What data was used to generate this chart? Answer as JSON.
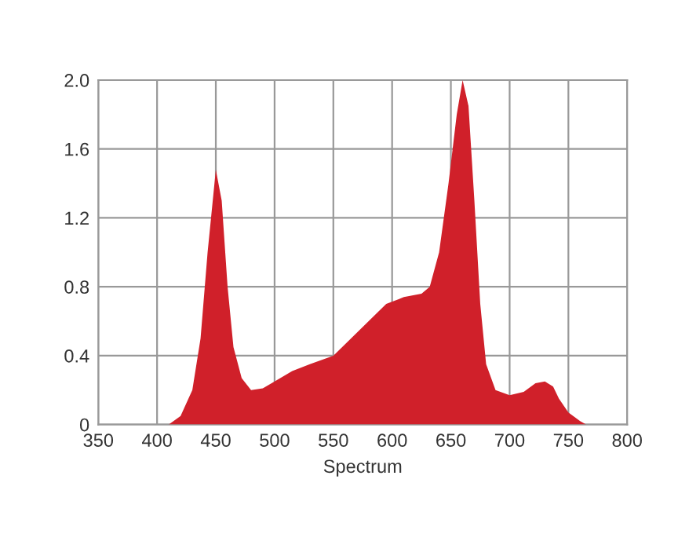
{
  "chart_data": {
    "type": "area",
    "xlabel": "Spectrum",
    "x": [
      410,
      420,
      430,
      437,
      443,
      450,
      455,
      460,
      465,
      472,
      480,
      490,
      500,
      515,
      530,
      550,
      565,
      580,
      595,
      610,
      625,
      632,
      640,
      648,
      655,
      660,
      665,
      670,
      675,
      680,
      688,
      700,
      712,
      722,
      730,
      737,
      742,
      750,
      760,
      765
    ],
    "series": [
      {
        "color": "#d0202a",
        "values": [
          0,
          0.05,
          0.2,
          0.5,
          1.0,
          1.48,
          1.3,
          0.8,
          0.45,
          0.27,
          0.2,
          0.21,
          0.25,
          0.31,
          0.35,
          0.4,
          0.5,
          0.6,
          0.7,
          0.74,
          0.76,
          0.8,
          1.0,
          1.4,
          1.8,
          2.0,
          1.85,
          1.3,
          0.7,
          0.35,
          0.2,
          0.17,
          0.19,
          0.24,
          0.25,
          0.22,
          0.15,
          0.07,
          0.02,
          0
        ]
      }
    ],
    "xlim": [
      350,
      800
    ],
    "xticks": [
      350,
      400,
      450,
      500,
      550,
      600,
      650,
      700,
      750,
      800
    ],
    "ylim": [
      0,
      2.0
    ],
    "yticks": [
      {
        "value": 0,
        "label": "0"
      },
      {
        "value": 0.4,
        "label": "0.4"
      },
      {
        "value": 0.8,
        "label": "0.8"
      },
      {
        "value": 1.2,
        "label": "1.2"
      },
      {
        "value": 1.6,
        "label": "1.6"
      },
      {
        "value": 2.0,
        "label": "2.0"
      }
    ],
    "grid": true
  }
}
